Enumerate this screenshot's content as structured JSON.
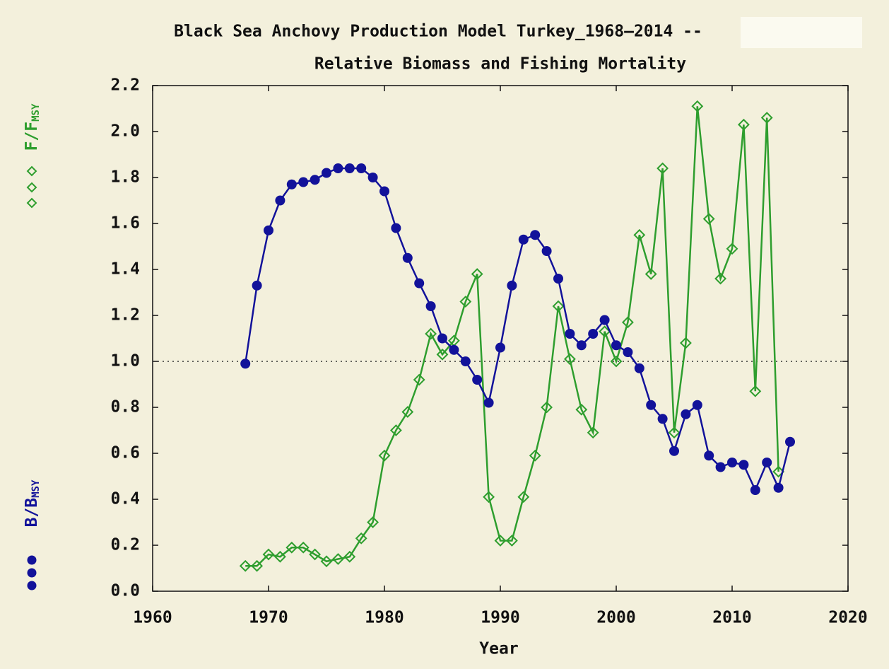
{
  "chart_data": {
    "type": "line",
    "title": "Black Sea Anchovy Production Model Turkey_1968–2014 --",
    "subtitle": "Relative Biomass and Fishing Mortality",
    "xlabel": "Year",
    "xlim": [
      1960,
      2020
    ],
    "xticks": [
      1960,
      1970,
      1980,
      1990,
      2000,
      2010,
      2020
    ],
    "ylim": [
      0,
      2.2
    ],
    "yticks": [
      {
        "value": 0,
        "label": "0.0"
      },
      {
        "value": 0.2,
        "label": "0.2"
      },
      {
        "value": 0.4,
        "label": "0.4"
      },
      {
        "value": 0.6,
        "label": "0.6"
      },
      {
        "value": 0.8,
        "label": "0.8"
      },
      {
        "value": 1,
        "label": "1.0"
      },
      {
        "value": 1.2,
        "label": "1.2"
      },
      {
        "value": 1.4,
        "label": "1.4"
      },
      {
        "value": 1.6,
        "label": "1.6"
      },
      {
        "value": 1.8,
        "label": "1.8"
      },
      {
        "value": 2,
        "label": "2.0"
      },
      {
        "value": 2.2,
        "label": "2.2"
      }
    ],
    "reference_line": 1,
    "series": [
      {
        "name": "B/B",
        "name_sub": "MSY",
        "color": "#12129a",
        "marker": "circle",
        "x": [
          1968,
          1969,
          1970,
          1971,
          1972,
          1973,
          1974,
          1975,
          1976,
          1977,
          1978,
          1979,
          1980,
          1981,
          1982,
          1983,
          1984,
          1985,
          1986,
          1987,
          1988,
          1989,
          1990,
          1991,
          1992,
          1993,
          1994,
          1995,
          1996,
          1997,
          1998,
          1999,
          2000,
          2001,
          2002,
          2003,
          2004,
          2005,
          2006,
          2007,
          2008,
          2009,
          2010,
          2011,
          2012,
          2013,
          2014,
          2015
        ],
        "values": [
          0.99,
          1.33,
          1.57,
          1.7,
          1.77,
          1.78,
          1.79,
          1.82,
          1.84,
          1.84,
          1.84,
          1.8,
          1.74,
          1.58,
          1.45,
          1.34,
          1.24,
          1.1,
          1.05,
          1.0,
          0.92,
          0.82,
          1.06,
          1.33,
          1.53,
          1.55,
          1.48,
          1.36,
          1.12,
          1.07,
          1.12,
          1.18,
          1.07,
          1.04,
          0.97,
          0.81,
          0.75,
          0.61,
          0.77,
          0.81,
          0.59,
          0.54,
          0.56,
          0.55,
          0.44,
          0.56,
          0.45,
          0.65
        ]
      },
      {
        "name": "F/F",
        "name_sub": "MSY",
        "color": "#2e9e2e",
        "marker": "diamond",
        "x": [
          1968,
          1969,
          1970,
          1971,
          1972,
          1973,
          1974,
          1975,
          1976,
          1977,
          1978,
          1979,
          1980,
          1981,
          1982,
          1983,
          1984,
          1985,
          1986,
          1987,
          1988,
          1989,
          1990,
          1991,
          1992,
          1993,
          1994,
          1995,
          1996,
          1997,
          1998,
          1999,
          2000,
          2001,
          2002,
          2003,
          2004,
          2005,
          2006,
          2007,
          2008,
          2009,
          2010,
          2011,
          2012,
          2013,
          2014
        ],
        "values": [
          0.11,
          0.11,
          0.16,
          0.15,
          0.19,
          0.19,
          0.16,
          0.13,
          0.14,
          0.15,
          0.23,
          0.3,
          0.59,
          0.7,
          0.78,
          0.92,
          1.12,
          1.03,
          1.09,
          1.26,
          1.38,
          0.41,
          0.22,
          0.22,
          0.41,
          0.59,
          0.8,
          1.24,
          1.01,
          0.79,
          0.69,
          1.13,
          1.0,
          1.17,
          1.55,
          1.38,
          1.84,
          0.69,
          1.08,
          2.11,
          1.62,
          1.36,
          1.49,
          2.03,
          0.87,
          2.06,
          0.52
        ]
      }
    ]
  }
}
